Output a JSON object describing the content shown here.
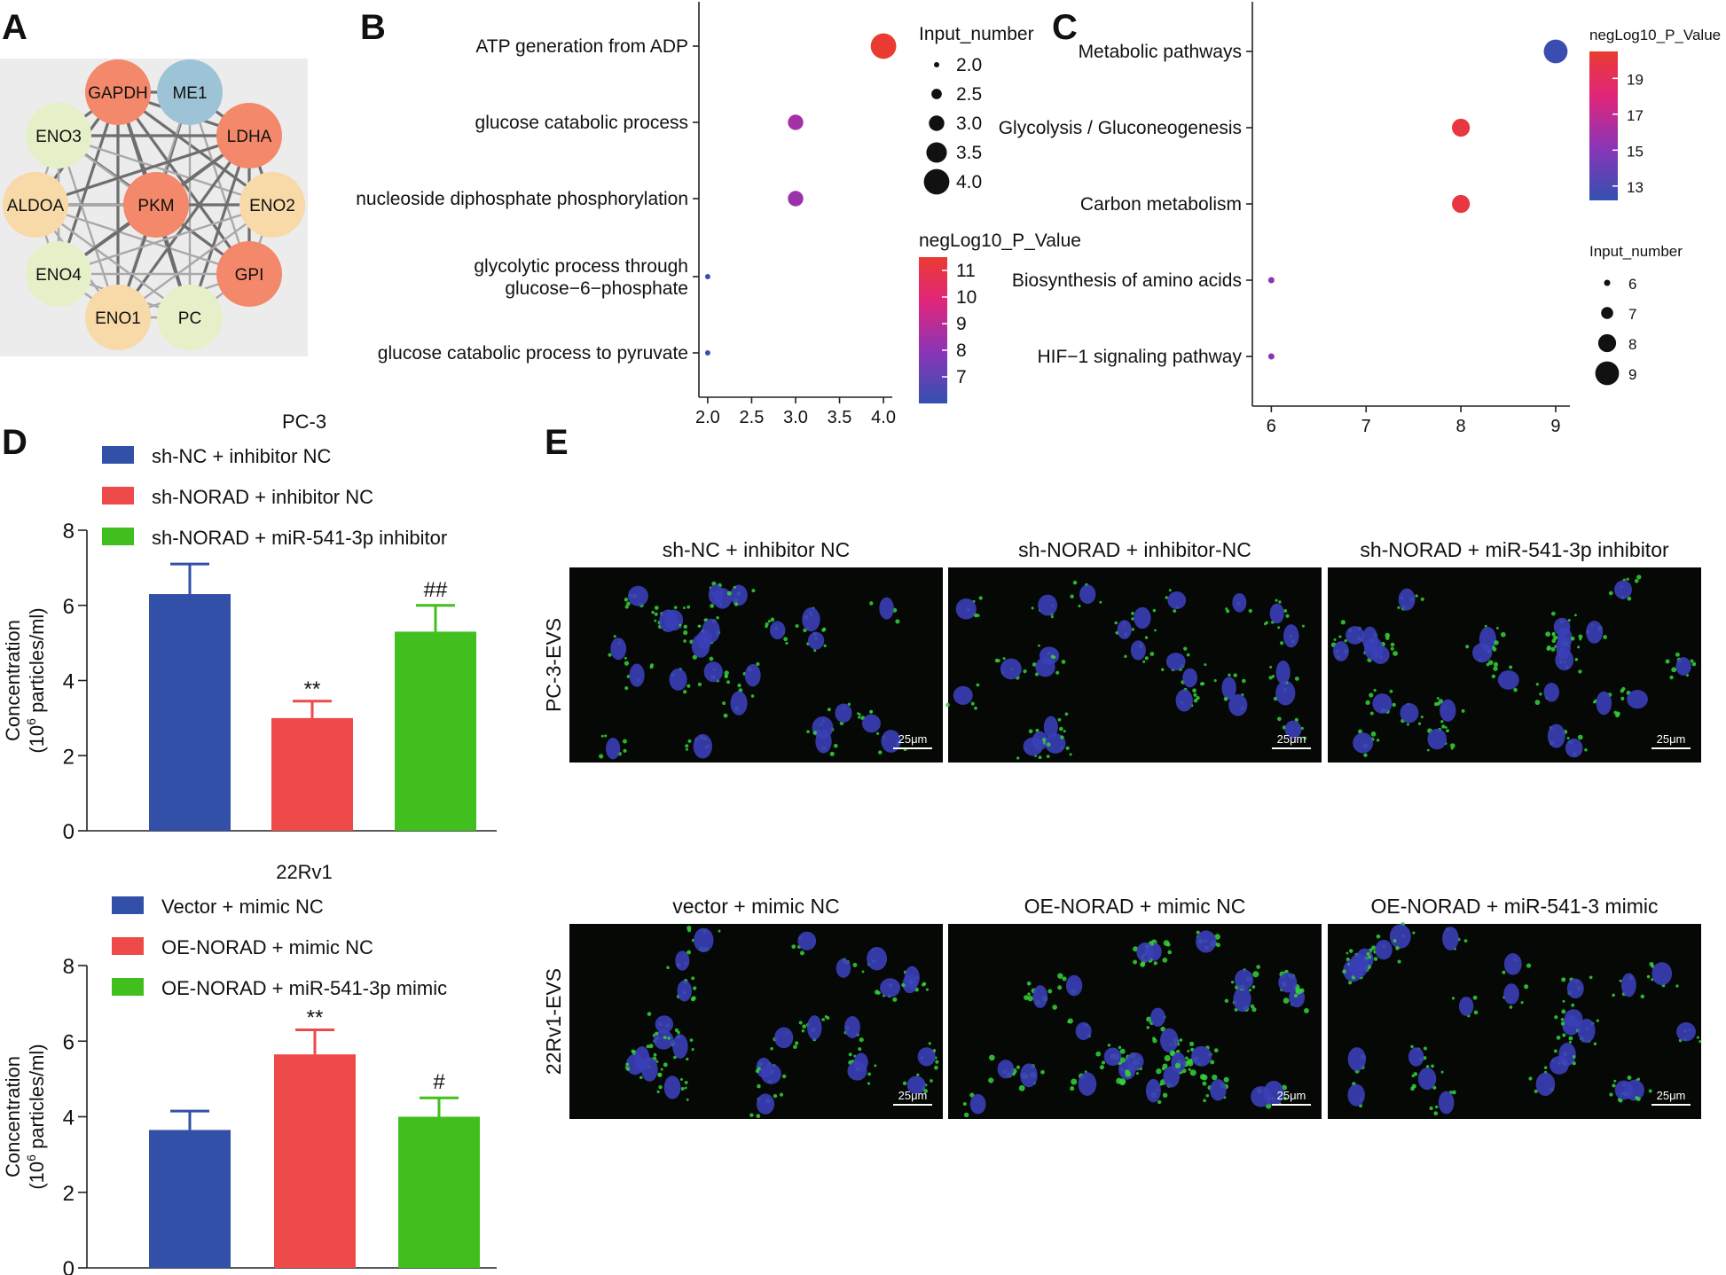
{
  "panel_labels": {
    "a": "A",
    "b": "B",
    "c": "C",
    "d": "D",
    "e": "E"
  },
  "network": {
    "nodes": [
      {
        "id": "GAPDH",
        "color": "#f4886a"
      },
      {
        "id": "ME1",
        "color": "#9dc3d6"
      },
      {
        "id": "ENO3",
        "color": "#e6f0c8"
      },
      {
        "id": "LDHA",
        "color": "#f4886a"
      },
      {
        "id": "ALDOA",
        "color": "#f8d9a8"
      },
      {
        "id": "PKM",
        "color": "#f4886a"
      },
      {
        "id": "ENO2",
        "color": "#f8d9a8"
      },
      {
        "id": "ENO4",
        "color": "#e6f0c8"
      },
      {
        "id": "GPI",
        "color": "#f4886a"
      },
      {
        "id": "ENO1",
        "color": "#f8d9a8"
      },
      {
        "id": "PC",
        "color": "#e6f0c8"
      }
    ]
  },
  "chart_data": [
    {
      "type": "scatter",
      "panel": "B",
      "categories": [
        "ATP generation from ADP",
        "glucose catabolic process",
        "nucleoside diphosphate phosphorylation",
        "glycolytic process through\nglucose−6−phosphate",
        "glucose catabolic process to pyruvate"
      ],
      "x": [
        4.0,
        3.0,
        3.0,
        2.0,
        2.0
      ],
      "size_values": [
        4,
        3,
        3,
        2,
        2
      ],
      "color_values": [
        11.5,
        8.5,
        8.3,
        6.3,
        6.2
      ],
      "x_ticks": [
        "2.0",
        "2.5",
        "3.0",
        "3.5",
        "4.0"
      ],
      "xlim": [
        1.9,
        4.1
      ],
      "size_legend": {
        "title": "Input_number",
        "values": [
          "2.0",
          "2.5",
          "3.0",
          "3.5",
          "4.0"
        ]
      },
      "color_legend": {
        "title": "negLog10_P_Value",
        "ticks": [
          "11",
          "10",
          "9",
          "8",
          "7"
        ],
        "range": [
          6,
          11.5
        ]
      }
    },
    {
      "type": "scatter",
      "panel": "C",
      "categories": [
        "Metabolic pathways",
        "Glycolysis / Gluconeogenesis",
        "Carbon metabolism",
        "Biosynthesis of amino acids",
        "HIF−1 signaling pathway"
      ],
      "x": [
        9,
        8,
        8,
        6,
        6
      ],
      "size_values": [
        9,
        8,
        8,
        6,
        6
      ],
      "color_values": [
        12.5,
        20,
        20,
        15,
        15
      ],
      "x_ticks": [
        "6",
        "7",
        "8",
        "9"
      ],
      "xlim": [
        5.8,
        9.15
      ],
      "size_legend": {
        "title": "Input_number",
        "values": [
          "6",
          "7",
          "8",
          "9"
        ]
      },
      "color_legend": {
        "title": "negLog10_P_Value",
        "ticks": [
          "19",
          "17",
          "15",
          "13"
        ],
        "range": [
          12.2,
          20.5
        ]
      }
    },
    {
      "type": "bar",
      "panel": "D-top",
      "title": "PC-3",
      "categories": [
        "sh-NC + inhibitor NC",
        "sh-NORAD + inhibitor NC",
        "sh-NORAD + miR-541-3p inhibitor"
      ],
      "values": [
        6.3,
        3.0,
        5.3
      ],
      "errors": [
        0.8,
        0.45,
        0.7
      ],
      "annotations": [
        "",
        "**",
        "##"
      ],
      "colors": [
        "#3350a8",
        "#ee4a4a",
        "#40bf1e"
      ],
      "ylim": [
        0,
        8
      ],
      "y_ticks": [
        "0",
        "2",
        "4",
        "6",
        "8"
      ],
      "ylabel_1": "Concentration",
      "ylabel_2a": "(10",
      "ylabel_2sup": "6",
      "ylabel_2b": " particles/ml)"
    },
    {
      "type": "bar",
      "panel": "D-bottom",
      "title": "22Rv1",
      "categories": [
        "Vector + mimic NC",
        "OE-NORAD + mimic NC",
        "OE-NORAD + miR-541-3p mimic"
      ],
      "values": [
        3.65,
        5.65,
        4.0
      ],
      "errors": [
        0.5,
        0.65,
        0.5
      ],
      "annotations": [
        "",
        "**",
        "#"
      ],
      "colors": [
        "#3350a8",
        "#ee4a4a",
        "#40bf1e"
      ],
      "ylim": [
        0,
        8
      ],
      "y_ticks": [
        "0",
        "2",
        "4",
        "6",
        "8"
      ],
      "ylabel_1": "Concentration",
      "ylabel_2a": "(10",
      "ylabel_2sup": "6",
      "ylabel_2b": " particles/ml)"
    }
  ],
  "micrographs": {
    "row1_label": "PC-3-EVS",
    "row2_label": "22Rv1-EVS",
    "row1_titles": [
      "sh-NC + inhibitor NC",
      "sh-NORAD + inhibitor-NC",
      "sh-NORAD + miR-541-3p inhibitor"
    ],
    "row2_titles": [
      "vector + mimic NC",
      "OE-NORAD + mimic NC",
      "OE-NORAD + miR-541-3 mimic"
    ],
    "scale_bar": "25μm",
    "nucleus_color": "#3b3fb8",
    "vesicle_color": "#35d43a"
  }
}
